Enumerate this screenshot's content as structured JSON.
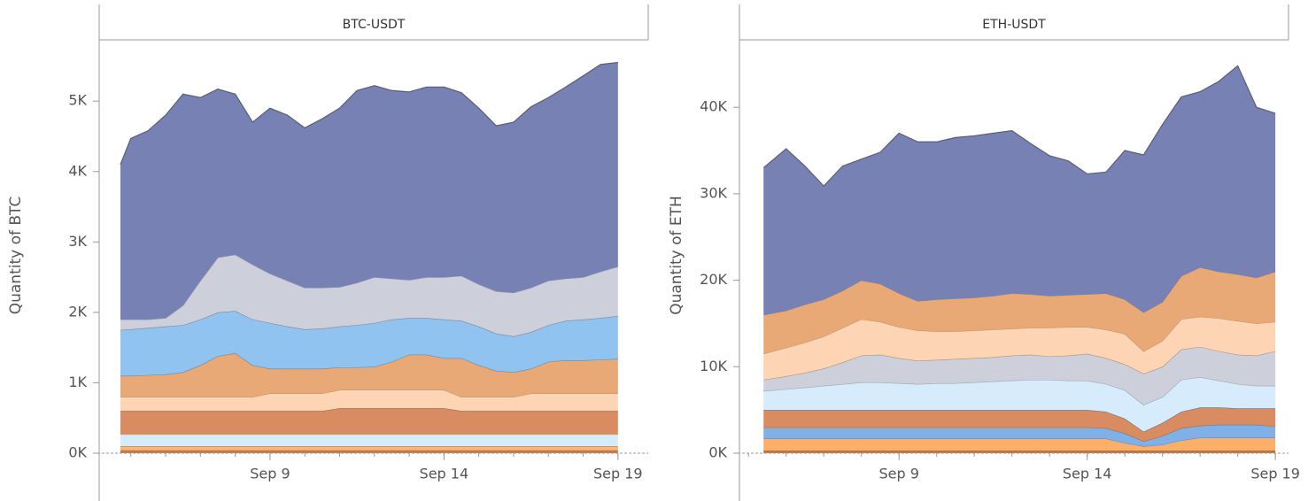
{
  "chart_data": [
    {
      "type": "stacked_area",
      "title": "BTC-USDT",
      "ylabel": "Quantity of BTC",
      "xlim": [
        4.09,
        19.87
      ],
      "ylim": [
        0,
        5870
      ],
      "xticks": [
        {
          "value": 9,
          "label": "Sep 9"
        },
        {
          "value": 14,
          "label": "Sep 14"
        },
        {
          "value": 19,
          "label": "Sep 19"
        }
      ],
      "x_minor_ticks": [
        5,
        6,
        7,
        8,
        9,
        10,
        11,
        12,
        13,
        14,
        15,
        16,
        17,
        18,
        19
      ],
      "yticks": [
        {
          "value": 0,
          "label": "0K"
        },
        {
          "value": 1000,
          "label": "1K"
        },
        {
          "value": 2000,
          "label": "2K"
        },
        {
          "value": 3000,
          "label": "3K"
        },
        {
          "value": 4000,
          "label": "4K"
        },
        {
          "value": 5000,
          "label": "5K"
        }
      ],
      "x": [
        4.7,
        5,
        5.5,
        6,
        6.5,
        7,
        7.5,
        8,
        8.5,
        9,
        9.5,
        10,
        10.5,
        11,
        11.5,
        12,
        12.5,
        13,
        13.5,
        14,
        14.5,
        15,
        15.5,
        16,
        16.5,
        17,
        17.5,
        18,
        18.5,
        19
      ],
      "series": [
        {
          "color": "#c57e50",
          "values": [
            40,
            40,
            40,
            40,
            40,
            40,
            40,
            40,
            40,
            40,
            40,
            40,
            40,
            40,
            40,
            40,
            40,
            40,
            40,
            40,
            40,
            40,
            40,
            40,
            40,
            40,
            40,
            40,
            40,
            40
          ]
        },
        {
          "color": "#fbb677",
          "values": [
            60,
            60,
            60,
            60,
            60,
            60,
            60,
            60,
            60,
            60,
            60,
            60,
            60,
            60,
            60,
            60,
            60,
            60,
            60,
            60,
            60,
            60,
            60,
            60,
            60,
            60,
            60,
            60,
            60,
            60
          ]
        },
        {
          "color": "#d6ebfb",
          "values": [
            170,
            170,
            170,
            170,
            170,
            170,
            170,
            170,
            170,
            170,
            170,
            170,
            170,
            170,
            170,
            170,
            170,
            170,
            170,
            170,
            170,
            170,
            170,
            170,
            170,
            170,
            170,
            170,
            170,
            170
          ]
        },
        {
          "color": "#d98c61",
          "values": [
            330,
            330,
            330,
            330,
            330,
            330,
            330,
            330,
            330,
            330,
            330,
            330,
            330,
            370,
            370,
            370,
            370,
            370,
            370,
            370,
            330,
            330,
            330,
            330,
            330,
            330,
            330,
            330,
            330,
            330
          ]
        },
        {
          "color": "#fdd5b4",
          "values": [
            200,
            200,
            200,
            200,
            200,
            200,
            200,
            200,
            200,
            250,
            250,
            250,
            250,
            260,
            260,
            260,
            260,
            260,
            260,
            260,
            200,
            200,
            200,
            200,
            250,
            250,
            250,
            250,
            250,
            250
          ]
        },
        {
          "color": "#e8a977",
          "values": [
            300,
            300,
            310,
            320,
            350,
            450,
            580,
            620,
            450,
            350,
            350,
            350,
            350,
            320,
            320,
            330,
            400,
            500,
            500,
            450,
            550,
            450,
            370,
            350,
            350,
            450,
            470,
            470,
            480,
            490
          ]
        },
        {
          "color": "#91c3f1",
          "values": [
            650,
            660,
            670,
            680,
            670,
            650,
            620,
            600,
            650,
            650,
            600,
            560,
            570,
            580,
            600,
            620,
            600,
            520,
            520,
            550,
            530,
            550,
            530,
            510,
            520,
            520,
            560,
            580,
            590,
            610
          ]
        },
        {
          "color": "#cdd0da",
          "values": [
            150,
            140,
            120,
            120,
            280,
            550,
            780,
            800,
            780,
            700,
            650,
            590,
            580,
            560,
            600,
            650,
            580,
            540,
            580,
            600,
            640,
            600,
            600,
            620,
            630,
            630,
            600,
            600,
            660,
            700
          ]
        },
        {
          "color": "#7781b3",
          "values": [
            2200,
            2570,
            2680,
            2880,
            3000,
            2600,
            2390,
            2280,
            2020,
            2350,
            2350,
            2270,
            2400,
            2540,
            2730,
            2720,
            2670,
            2670,
            2700,
            2700,
            2600,
            2500,
            2350,
            2420,
            2570,
            2600,
            2720,
            2860,
            2940,
            2900
          ]
        }
      ]
    },
    {
      "type": "stacked_area",
      "title": "ETH-USDT",
      "ylabel": "Quantity of ETH",
      "xlim": [
        4.76,
        19.35
      ],
      "ylim": [
        0,
        47800
      ],
      "xticks": [
        {
          "value": 9,
          "label": "Sep 9"
        },
        {
          "value": 14,
          "label": "Sep 14"
        },
        {
          "value": 19,
          "label": "Sep 19"
        }
      ],
      "x_minor_ticks": [
        5,
        6,
        7,
        8,
        9,
        10,
        11,
        12,
        13,
        14,
        15,
        16,
        17,
        18,
        19
      ],
      "yticks": [
        {
          "value": 0,
          "label": "0K"
        },
        {
          "value": 10000,
          "label": "10K"
        },
        {
          "value": 20000,
          "label": "20K"
        },
        {
          "value": 30000,
          "label": "30K"
        },
        {
          "value": 40000,
          "label": "40K"
        }
      ],
      "x": [
        5.4,
        6,
        6.5,
        7,
        7.5,
        8,
        8.5,
        9,
        9.5,
        10,
        10.5,
        11,
        11.5,
        12,
        12.5,
        13,
        13.5,
        14,
        14.5,
        15,
        15.5,
        16,
        16.5,
        17,
        17.5,
        18,
        18.5,
        19
      ],
      "series": [
        {
          "color": "#b97a52",
          "values": [
            300,
            300,
            300,
            300,
            300,
            300,
            300,
            300,
            300,
            300,
            300,
            300,
            300,
            300,
            300,
            300,
            300,
            300,
            300,
            300,
            300,
            300,
            300,
            300,
            300,
            300,
            300,
            300
          ]
        },
        {
          "color": "#fbb06a",
          "values": [
            1400,
            1400,
            1400,
            1400,
            1400,
            1400,
            1400,
            1400,
            1400,
            1400,
            1400,
            1400,
            1400,
            1400,
            1400,
            1400,
            1400,
            1400,
            1400,
            900,
            500,
            700,
            1200,
            1500,
            1500,
            1500,
            1500,
            1500
          ]
        },
        {
          "color": "#7fb0e8",
          "values": [
            1300,
            1300,
            1300,
            1300,
            1300,
            1300,
            1300,
            1300,
            1300,
            1300,
            1300,
            1300,
            1300,
            1300,
            1300,
            1300,
            1300,
            1300,
            1200,
            1100,
            600,
            1000,
            1400,
            1400,
            1500,
            1500,
            1500,
            1300
          ]
        },
        {
          "color": "#d98c61",
          "values": [
            2000,
            2000,
            2000,
            2000,
            2000,
            2000,
            2000,
            2000,
            2000,
            2000,
            2000,
            2000,
            2000,
            2000,
            2000,
            2000,
            2000,
            2000,
            1900,
            1700,
            1100,
            1500,
            1900,
            2100,
            2000,
            1900,
            1900,
            2100
          ]
        },
        {
          "color": "#d6ebfb",
          "values": [
            2200,
            2400,
            2600,
            2800,
            3000,
            3200,
            3200,
            3100,
            3000,
            3100,
            3100,
            3200,
            3300,
            3400,
            3500,
            3500,
            3400,
            3400,
            3200,
            3300,
            3100,
            3000,
            3700,
            3500,
            3100,
            2800,
            2600,
            2600
          ]
        },
        {
          "color": "#cdd0da",
          "values": [
            1300,
            1500,
            1700,
            2000,
            2500,
            3100,
            3200,
            2900,
            2700,
            2700,
            2800,
            2800,
            2800,
            2900,
            2900,
            2700,
            2900,
            3100,
            3000,
            3000,
            3600,
            3500,
            3500,
            3500,
            3400,
            3400,
            3500,
            4000
          ]
        },
        {
          "color": "#fdd5b4",
          "values": [
            3000,
            3300,
            3500,
            3700,
            4000,
            4200,
            3800,
            3600,
            3500,
            3300,
            3200,
            3200,
            3200,
            3100,
            3100,
            3300,
            3300,
            3100,
            3300,
            3500,
            2600,
            3000,
            3500,
            3500,
            3800,
            3900,
            3700,
            3400
          ]
        },
        {
          "color": "#e8a977",
          "values": [
            4500,
            4300,
            4400,
            4300,
            4300,
            4500,
            4400,
            3900,
            3400,
            3700,
            3800,
            3800,
            3900,
            4100,
            3900,
            3700,
            3700,
            3800,
            4200,
            4000,
            4500,
            4500,
            5000,
            5700,
            5400,
            5400,
            5300,
            5800
          ]
        },
        {
          "color": "#7781b3",
          "values": [
            17000,
            18700,
            16000,
            13100,
            14400,
            14000,
            15200,
            18500,
            18400,
            18200,
            18600,
            18700,
            18800,
            18800,
            17400,
            16200,
            15500,
            13900,
            14000,
            17200,
            18200,
            20500,
            20700,
            20300,
            22000,
            24100,
            19700,
            18300
          ]
        }
      ]
    }
  ]
}
